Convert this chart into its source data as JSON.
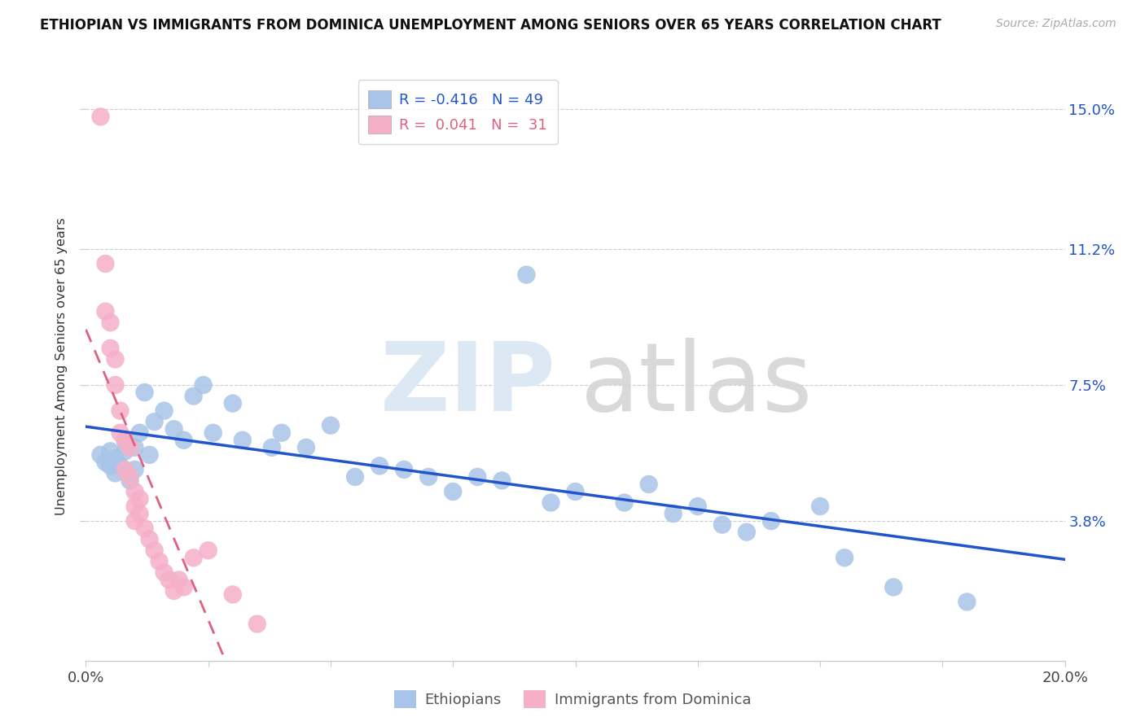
{
  "title": "ETHIOPIAN VS IMMIGRANTS FROM DOMINICA UNEMPLOYMENT AMONG SENIORS OVER 65 YEARS CORRELATION CHART",
  "source": "Source: ZipAtlas.com",
  "ylabel": "Unemployment Among Seniors over 65 years",
  "xlim": [
    0.0,
    0.2
  ],
  "ylim": [
    0.0,
    0.16
  ],
  "ytick_right_labels": [
    "3.8%",
    "7.5%",
    "11.2%",
    "15.0%"
  ],
  "ytick_right_values": [
    0.038,
    0.075,
    0.112,
    0.15
  ],
  "xtick_vals": [
    0.0,
    0.025,
    0.05,
    0.075,
    0.1,
    0.125,
    0.15,
    0.175,
    0.2
  ],
  "blue_R": -0.416,
  "blue_N": 49,
  "pink_R": 0.041,
  "pink_N": 31,
  "blue_color": "#a8c4e8",
  "pink_color": "#f5b0c8",
  "blue_line_color": "#2255cc",
  "pink_line_color": "#e06080",
  "blue_scatter_x": [
    0.003,
    0.004,
    0.005,
    0.005,
    0.006,
    0.006,
    0.007,
    0.008,
    0.008,
    0.009,
    0.01,
    0.01,
    0.011,
    0.012,
    0.013,
    0.014,
    0.016,
    0.018,
    0.02,
    0.022,
    0.024,
    0.026,
    0.03,
    0.032,
    0.038,
    0.04,
    0.045,
    0.05,
    0.055,
    0.06,
    0.065,
    0.07,
    0.075,
    0.08,
    0.085,
    0.09,
    0.095,
    0.1,
    0.11,
    0.115,
    0.12,
    0.125,
    0.13,
    0.135,
    0.14,
    0.15,
    0.155,
    0.165,
    0.18
  ],
  "blue_scatter_y": [
    0.056,
    0.054,
    0.057,
    0.053,
    0.055,
    0.051,
    0.053,
    0.057,
    0.06,
    0.049,
    0.058,
    0.052,
    0.062,
    0.073,
    0.056,
    0.065,
    0.068,
    0.063,
    0.06,
    0.072,
    0.075,
    0.062,
    0.07,
    0.06,
    0.058,
    0.062,
    0.058,
    0.064,
    0.05,
    0.053,
    0.052,
    0.05,
    0.046,
    0.05,
    0.049,
    0.105,
    0.043,
    0.046,
    0.043,
    0.048,
    0.04,
    0.042,
    0.037,
    0.035,
    0.038,
    0.042,
    0.028,
    0.02,
    0.016
  ],
  "pink_scatter_x": [
    0.003,
    0.004,
    0.004,
    0.005,
    0.005,
    0.006,
    0.006,
    0.007,
    0.007,
    0.008,
    0.008,
    0.009,
    0.009,
    0.01,
    0.01,
    0.01,
    0.011,
    0.011,
    0.012,
    0.013,
    0.014,
    0.015,
    0.016,
    0.017,
    0.018,
    0.019,
    0.02,
    0.022,
    0.025,
    0.03,
    0.035
  ],
  "pink_scatter_y": [
    0.148,
    0.108,
    0.095,
    0.092,
    0.085,
    0.082,
    0.075,
    0.068,
    0.062,
    0.06,
    0.052,
    0.058,
    0.05,
    0.046,
    0.042,
    0.038,
    0.044,
    0.04,
    0.036,
    0.033,
    0.03,
    0.027,
    0.024,
    0.022,
    0.019,
    0.022,
    0.02,
    0.028,
    0.03,
    0.018,
    0.01
  ]
}
